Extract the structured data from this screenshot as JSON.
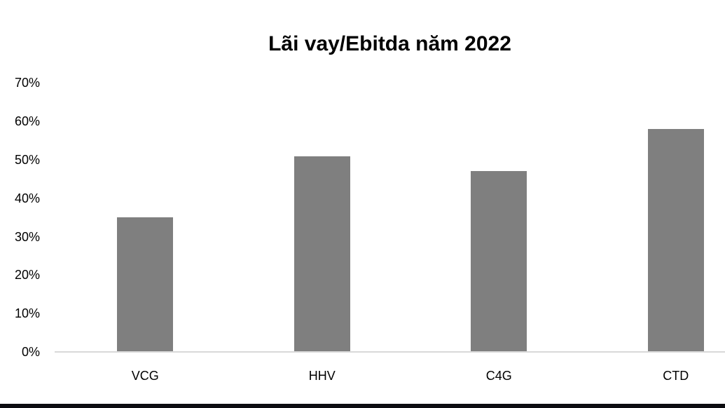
{
  "page": {
    "background": "#ffffff"
  },
  "chart_data": {
    "type": "bar",
    "title": "Lãi vay/Ebitda năm 2022",
    "categories": [
      "VCG",
      "HHV",
      "C4G",
      "CTD"
    ],
    "values": [
      35,
      51,
      47,
      58
    ],
    "unit": "%",
    "xlabel": "",
    "ylabel": "",
    "ylim": [
      0,
      70
    ],
    "ytick_step": 10,
    "ytick_labels": [
      "0%",
      "10%",
      "20%",
      "30%",
      "40%",
      "50%",
      "60%",
      "70%"
    ],
    "grid": false,
    "legend": false,
    "bar_color": "#7f7f7f",
    "axis_line_color": "#d9d9d9",
    "text_color": "#000000"
  },
  "decor": {
    "bottom_bar_color": "#0c0c10"
  }
}
